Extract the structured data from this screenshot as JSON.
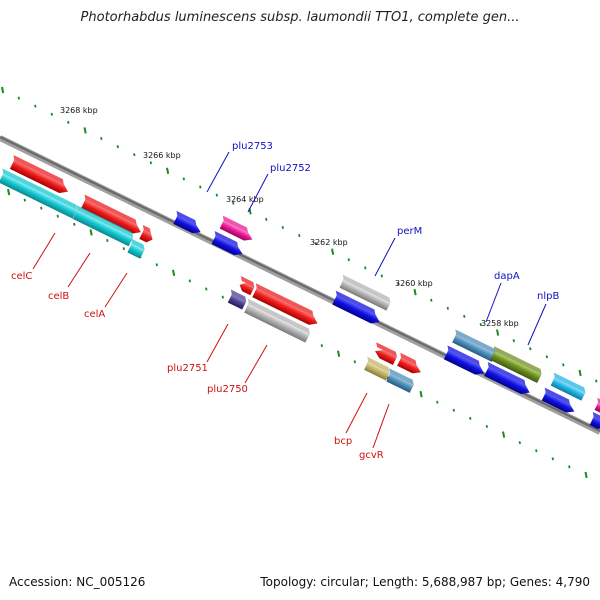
{
  "title": "Photorhabdus luminescens subsp. laumondii TTO1, complete gen...",
  "footer": {
    "accession": "Accession: NC_005126",
    "topology": "Topology: circular; Length: 5,688,987 bp; Genes: 4,790"
  },
  "ruler_labels": [
    "3268 kbp",
    "3266 kbp",
    "3264 kbp",
    "3262 kbp",
    "3260 kbp",
    "3258 kbp"
  ],
  "gene_labels_top": [
    "plu2753",
    "plu2752",
    "perM",
    "dapA",
    "nlpB"
  ],
  "gene_labels_bottom": [
    "celC",
    "celB",
    "celA",
    "plu2751",
    "plu2750",
    "bcp",
    "gcvR"
  ],
  "colors": {
    "red": "#ee1c1c",
    "cyan": "#14c8d2",
    "blue": "#1010e0",
    "magenta": "#ee1899",
    "grey": "#b4b4b4",
    "navy": "#4a3f8f",
    "khaki": "#c2b56a",
    "steel": "#4f8fba",
    "olive": "#6f8f23",
    "sky": "#22b6e6",
    "backbone": "#808080",
    "tick": "#1a8a1a",
    "label_top": "#1010c0",
    "label_bottom": "#d01010"
  }
}
